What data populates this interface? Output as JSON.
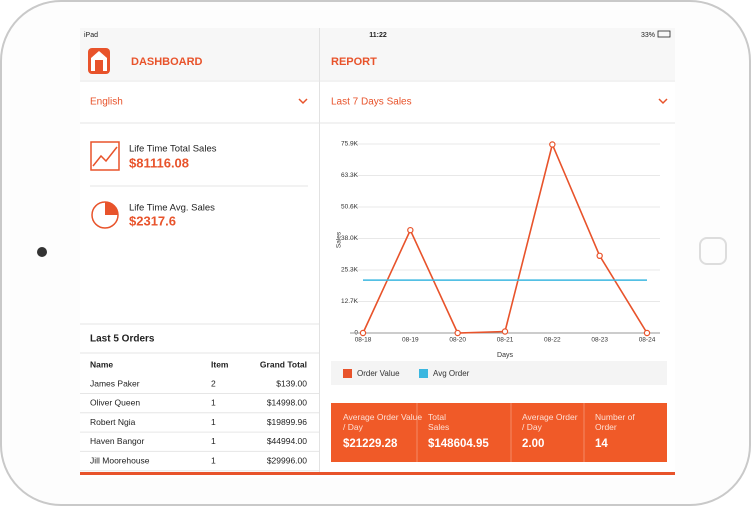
{
  "status": {
    "device": "iPad",
    "time": "11:22",
    "battery": "33%"
  },
  "sidebar": {
    "title": "DASHBOARD",
    "language": "English",
    "stats": [
      {
        "label": "Life Time Total Sales",
        "value": "$81116.08"
      },
      {
        "label": "Life Time Avg. Sales",
        "value": "$2317.6"
      }
    ],
    "orders": {
      "title": "Last 5 Orders",
      "columns": [
        "Name",
        "Item",
        "Grand Total"
      ],
      "rows": [
        [
          "James Paker",
          "2",
          "$139.00"
        ],
        [
          "Oliver Queen",
          "1",
          "$14998.00"
        ],
        [
          "Robert Ngia",
          "1",
          "$19899.96"
        ],
        [
          "Haven Bangor",
          "1",
          "$44994.00"
        ],
        [
          "Jill Moorehouse",
          "1",
          "$29996.00"
        ]
      ]
    }
  },
  "report": {
    "title": "REPORT",
    "period": "Last 7 Days Sales",
    "summary": [
      {
        "label": "Average Order Value / Day",
        "value": "$21229.28"
      },
      {
        "label": "Total Sales",
        "value": "$148604.95"
      },
      {
        "label": "Average Order / Day",
        "value": "2.00"
      },
      {
        "label": "Number of Order",
        "value": "14"
      }
    ]
  },
  "chart_data": {
    "type": "line",
    "xlabel": "Days",
    "ylabel": "Sales",
    "categories": [
      "08-18",
      "08-19",
      "08-20",
      "08-21",
      "08-22",
      "08-23",
      "08-24"
    ],
    "ylim": [
      0,
      75900
    ],
    "yticks": [
      0,
      {
        "value": 12650,
        "label": "12.7K"
      },
      {
        "value": 25300,
        "label": "25.3K"
      },
      {
        "value": 37950,
        "label": "38.0K"
      },
      {
        "value": 50600,
        "label": "50.6K"
      },
      {
        "value": 63250,
        "label": "63.3K"
      },
      {
        "value": 75900,
        "label": "75.9K"
      }
    ],
    "grid": true,
    "series": [
      {
        "name": "Order Value",
        "color": "#e8532b",
        "values": [
          0,
          41300,
          0,
          604,
          75700,
          31000,
          0
        ]
      },
      {
        "name": "Avg Order",
        "color": "#3bb7e0",
        "values": [
          21229,
          21229,
          21229,
          21229,
          21229,
          21229,
          21229
        ]
      }
    ]
  }
}
